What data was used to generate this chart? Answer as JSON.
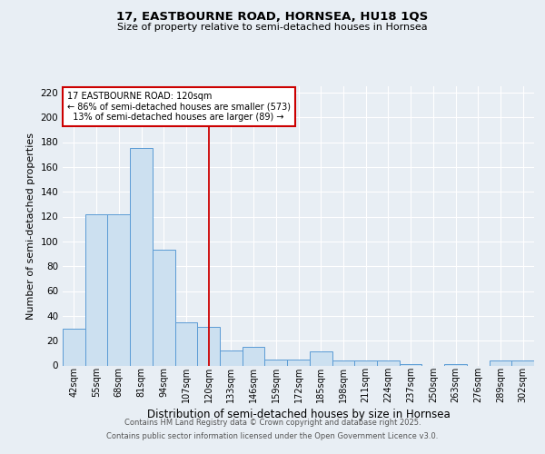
{
  "title1": "17, EASTBOURNE ROAD, HORNSEA, HU18 1QS",
  "title2": "Size of property relative to semi-detached houses in Hornsea",
  "xlabel": "Distribution of semi-detached houses by size in Hornsea",
  "ylabel": "Number of semi-detached properties",
  "categories": [
    "42sqm",
    "55sqm",
    "68sqm",
    "81sqm",
    "94sqm",
    "107sqm",
    "120sqm",
    "133sqm",
    "146sqm",
    "159sqm",
    "172sqm",
    "185sqm",
    "198sqm",
    "211sqm",
    "224sqm",
    "237sqm",
    "250sqm",
    "263sqm",
    "276sqm",
    "289sqm",
    "302sqm"
  ],
  "values": [
    30,
    122,
    122,
    175,
    93,
    35,
    31,
    12,
    15,
    5,
    5,
    11,
    4,
    4,
    4,
    1,
    0,
    1,
    0,
    4,
    4
  ],
  "bar_color": "#cce0f0",
  "bar_edge_color": "#5b9bd5",
  "property_label": "17 EASTBOURNE ROAD: 120sqm",
  "pct_smaller": 86,
  "count_smaller": 573,
  "pct_larger": 13,
  "count_larger": 89,
  "vline_color": "#cc0000",
  "annotation_box_edge_color": "#cc0000",
  "ylim": [
    0,
    225
  ],
  "yticks": [
    0,
    20,
    40,
    60,
    80,
    100,
    120,
    140,
    160,
    180,
    200,
    220
  ],
  "footnote1": "Contains HM Land Registry data © Crown copyright and database right 2025.",
  "footnote2": "Contains public sector information licensed under the Open Government Licence v3.0.",
  "bg_color": "#e8eef4",
  "plot_bg_color": "#e8eef4"
}
